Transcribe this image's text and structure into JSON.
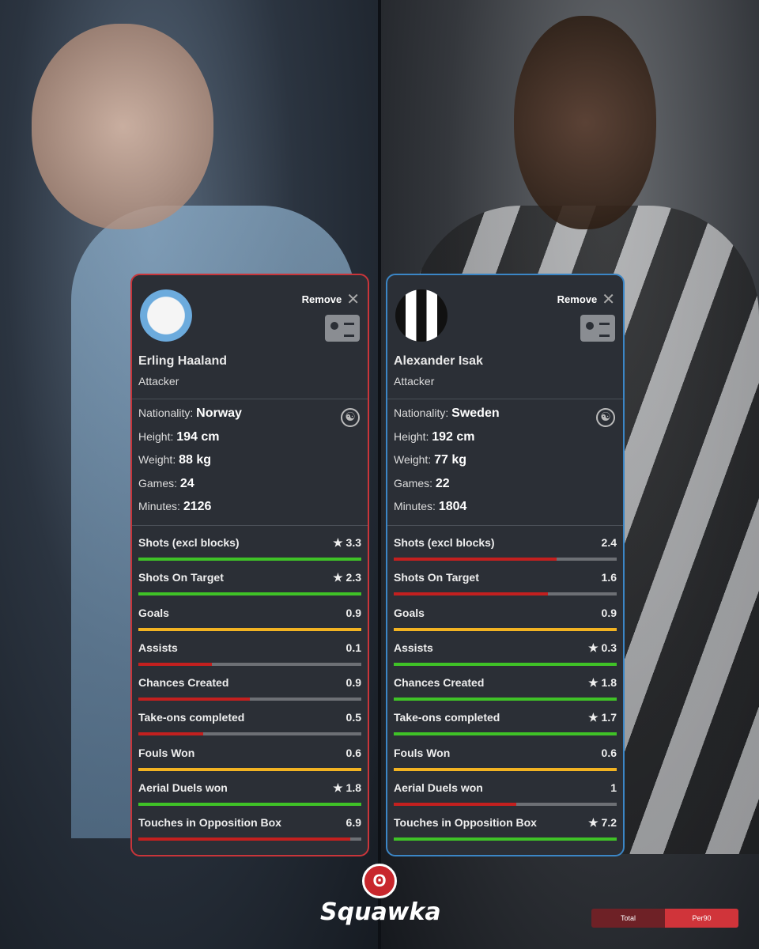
{
  "colors": {
    "green": "#3fc227",
    "yellow": "#f2b322",
    "red": "#c3201f",
    "left_border": "#c9353a",
    "right_border": "#3b86c6"
  },
  "players": [
    {
      "club_crest": "manchester-city-crest",
      "remove_label": "Remove",
      "name": "Erling Haaland",
      "position": "Attacker",
      "info": [
        {
          "label": "Nationality:",
          "value": "Norway"
        },
        {
          "label": "Height:",
          "value": "194 cm"
        },
        {
          "label": "Weight:",
          "value": "88 kg"
        },
        {
          "label": "Games:",
          "value": "24"
        },
        {
          "label": "Minutes:",
          "value": "2126"
        }
      ],
      "stats": [
        {
          "label": "Shots (excl blocks)",
          "value": "3.3",
          "star": true,
          "fill": 1.0,
          "color": "green"
        },
        {
          "label": "Shots On Target",
          "value": "2.3",
          "star": true,
          "fill": 1.0,
          "color": "green"
        },
        {
          "label": "Goals",
          "value": "0.9",
          "star": false,
          "fill": 1.0,
          "color": "yellow"
        },
        {
          "label": "Assists",
          "value": "0.1",
          "star": false,
          "fill": 0.33,
          "color": "red"
        },
        {
          "label": "Chances Created",
          "value": "0.9",
          "star": false,
          "fill": 0.5,
          "color": "red"
        },
        {
          "label": "Take-ons completed",
          "value": "0.5",
          "star": false,
          "fill": 0.29,
          "color": "red"
        },
        {
          "label": "Fouls Won",
          "value": "0.6",
          "star": false,
          "fill": 1.0,
          "color": "yellow"
        },
        {
          "label": "Aerial Duels won",
          "value": "1.8",
          "star": true,
          "fill": 1.0,
          "color": "green"
        },
        {
          "label": "Touches in Opposition Box",
          "value": "6.9",
          "star": false,
          "fill": 0.95,
          "color": "red"
        }
      ]
    },
    {
      "club_crest": "newcastle-united-crest",
      "remove_label": "Remove",
      "name": "Alexander Isak",
      "position": "Attacker",
      "info": [
        {
          "label": "Nationality:",
          "value": "Sweden"
        },
        {
          "label": "Height:",
          "value": "192 cm"
        },
        {
          "label": "Weight:",
          "value": "77 kg"
        },
        {
          "label": "Games:",
          "value": "22"
        },
        {
          "label": "Minutes:",
          "value": "1804"
        }
      ],
      "stats": [
        {
          "label": "Shots (excl blocks)",
          "value": "2.4",
          "star": false,
          "fill": 0.73,
          "color": "red"
        },
        {
          "label": "Shots On Target",
          "value": "1.6",
          "star": false,
          "fill": 0.69,
          "color": "red"
        },
        {
          "label": "Goals",
          "value": "0.9",
          "star": false,
          "fill": 1.0,
          "color": "yellow"
        },
        {
          "label": "Assists",
          "value": "0.3",
          "star": true,
          "fill": 1.0,
          "color": "green"
        },
        {
          "label": "Chances Created",
          "value": "1.8",
          "star": true,
          "fill": 1.0,
          "color": "green"
        },
        {
          "label": "Take-ons completed",
          "value": "1.7",
          "star": true,
          "fill": 1.0,
          "color": "green"
        },
        {
          "label": "Fouls Won",
          "value": "0.6",
          "star": false,
          "fill": 1.0,
          "color": "yellow"
        },
        {
          "label": "Aerial Duels won",
          "value": "1",
          "star": false,
          "fill": 0.55,
          "color": "red"
        },
        {
          "label": "Touches in Opposition Box",
          "value": "7.2",
          "star": true,
          "fill": 1.0,
          "color": "green"
        }
      ]
    }
  ],
  "brand": {
    "name": "Squawka"
  },
  "toggle": {
    "total": "Total",
    "per90": "Per90",
    "selected": "Per90"
  }
}
